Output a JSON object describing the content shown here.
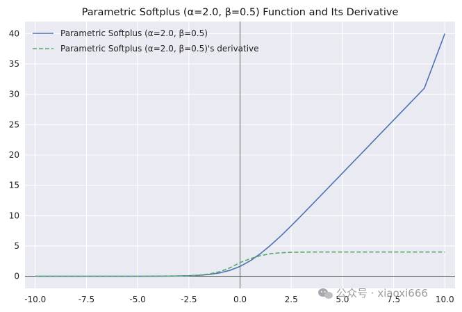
{
  "chart_data": {
    "type": "line",
    "title": "Parametric Softplus (α=2.0, β=0.5) Function and Its Derivative",
    "xlabel": "",
    "ylabel": "",
    "xlim": [
      -10.5,
      10.5
    ],
    "ylim": [
      -2,
      42
    ],
    "xticks": [
      -10,
      -7.5,
      -5,
      -2.5,
      0,
      2.5,
      5,
      7.5,
      10
    ],
    "xtick_labels": [
      "-10.0",
      "-7.5",
      "-5.0",
      "-2.5",
      "0.0",
      "2.5",
      "5.0",
      "7.5",
      "10.0"
    ],
    "yticks": [
      0,
      5,
      10,
      15,
      20,
      25,
      30,
      35,
      40
    ],
    "ytick_labels": [
      "0",
      "5",
      "10",
      "15",
      "20",
      "25",
      "30",
      "35",
      "40"
    ],
    "grid": true,
    "legend_position": "upper-left",
    "reference_lines": {
      "horizontal_y": 0,
      "vertical_x": 0
    },
    "x": [
      -10,
      -9,
      -8,
      -7,
      -6,
      -5,
      -4,
      -3,
      -2.5,
      -2,
      -1.5,
      -1,
      -0.5,
      0,
      0.5,
      1,
      1.5,
      2,
      2.5,
      3,
      4,
      5,
      6,
      7,
      8,
      9,
      10
    ],
    "series": [
      {
        "name": "Parametric Softplus (α=2.0, β=0.5)",
        "style": "solid",
        "color": "#4c72b0",
        "values": [
          0.0,
          0.0,
          0.0,
          0.0,
          0.0,
          0.0,
          0.01,
          0.04,
          0.08,
          0.16,
          0.3,
          0.55,
          0.97,
          1.62,
          2.55,
          3.74,
          5.13,
          6.67,
          8.32,
          10.02,
          13.5,
          17.0,
          20.5,
          24.0,
          27.5,
          31.0,
          40.0
        ]
      },
      {
        "name": "Parametric Softplus (α=2.0, β=0.5)'s derivative",
        "style": "dashed",
        "color": "#55a868",
        "values": [
          0.0,
          0.0,
          0.0,
          0.0,
          0.0,
          0.0,
          0.01,
          0.04,
          0.09,
          0.18,
          0.38,
          0.74,
          1.38,
          2.25,
          2.9,
          3.4,
          3.72,
          3.88,
          3.95,
          3.98,
          4.0,
          4.0,
          4.0,
          4.0,
          4.0,
          4.0,
          4.0
        ]
      }
    ]
  },
  "watermark": {
    "text": "公众号 · xiaoxi666",
    "icon": "wechat-icon"
  },
  "colors": {
    "plot_background": "#eaeaf2",
    "grid": "#ffffff",
    "reference_line": "#333333"
  }
}
